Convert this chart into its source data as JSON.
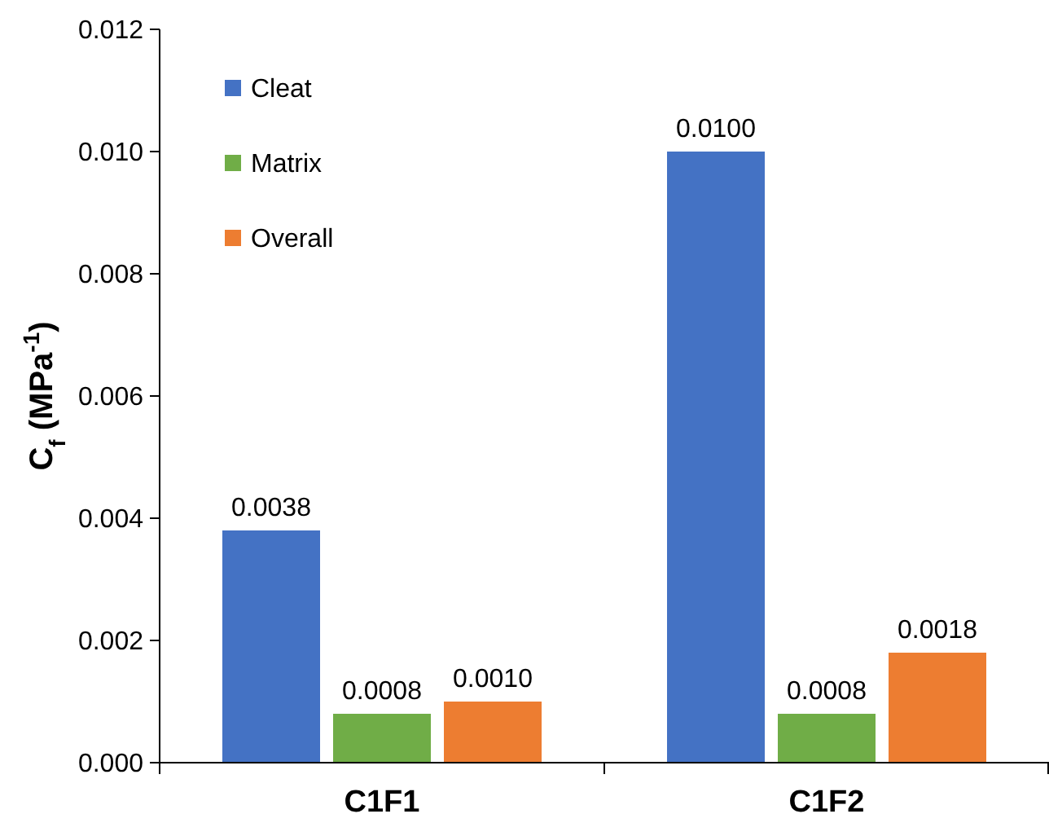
{
  "chart_data": {
    "type": "bar",
    "ylabel": "C$_{f}$ (MPa$^{-1}$)",
    "categories": [
      "C1F1",
      "C1F2"
    ],
    "series": [
      {
        "name": "Cleat",
        "color": "#4472c4",
        "values": [
          0.0038,
          0.01
        ],
        "value_labels": [
          "0.0038",
          "0.0100"
        ]
      },
      {
        "name": "Matrix",
        "color": "#70ad47",
        "values": [
          0.0008,
          0.0008
        ],
        "value_labels": [
          "0.0008",
          "0.0008"
        ]
      },
      {
        "name": "Overall",
        "color": "#ed7d31",
        "values": [
          0.001,
          0.0018
        ],
        "value_labels": [
          "0.0010",
          "0.0018"
        ]
      }
    ],
    "ylim": [
      0,
      0.012
    ],
    "yticks": [
      {
        "value": 0,
        "label": "0.000"
      },
      {
        "value": 0.002,
        "label": "0.002"
      },
      {
        "value": 0.004,
        "label": "0.004"
      },
      {
        "value": 0.006,
        "label": "0.006"
      },
      {
        "value": 0.008,
        "label": "0.008"
      },
      {
        "value": 0.01,
        "label": "0.010"
      },
      {
        "value": 0.012,
        "label": "0.012"
      }
    ],
    "legend": "top left",
    "grid": false
  }
}
